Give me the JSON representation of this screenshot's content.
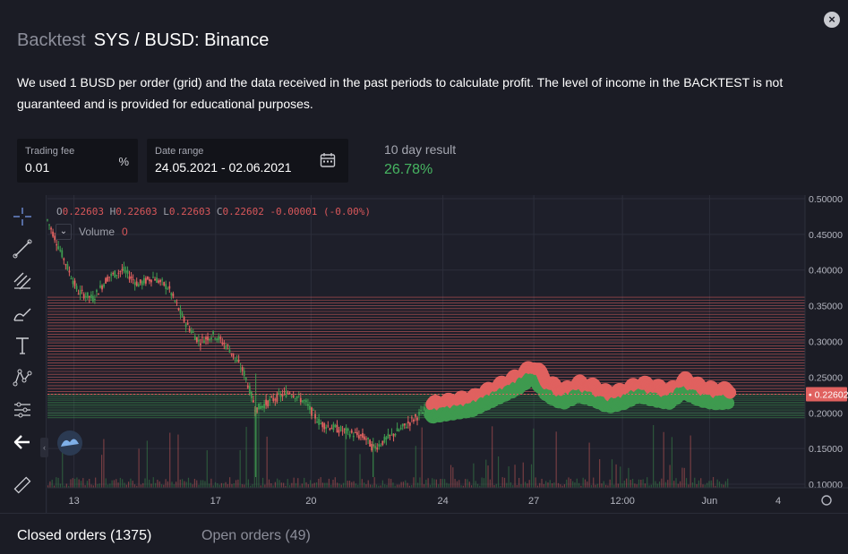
{
  "header": {
    "section": "Backtest",
    "pair_title": "SYS / BUSD: Binance",
    "close_label": "×"
  },
  "description": "We used 1 BUSD per order (grid) and the data received in the past periods to calculate profit. The level of income in the BACKTEST is not guaranteed and is provided for educational purposes.",
  "trading_fee": {
    "label": "Trading fee",
    "value": "0.01",
    "unit": "%"
  },
  "date_range": {
    "label": "Date range",
    "value": "24.05.2021 - 02.06.2021"
  },
  "result": {
    "label": "10 day result",
    "value": "26.78%"
  },
  "legend": {
    "o_key": "O",
    "o_val": "0.22603",
    "h_key": "H",
    "h_val": "0.22603",
    "l_key": "L",
    "l_val": "0.22603",
    "c_key": "C",
    "c_val": "0.22602",
    "change": "-0.00001 (-0.00%)",
    "volume_label": "Volume",
    "volume_value": "0"
  },
  "tabs": {
    "closed": "Closed orders (1375)",
    "open": "Open orders (49)"
  },
  "colors": {
    "up": "#3e9a4f",
    "down": "#e0615f",
    "accent_green": "#47b662",
    "background": "#1b1c25"
  },
  "chart_data": {
    "type": "candlestick",
    "ylim": [
      0.095,
      0.505
    ],
    "y_ticks": [
      "0.50000",
      "0.45000",
      "0.40000",
      "0.35000",
      "0.30000",
      "0.25000",
      "0.20000",
      "0.15000",
      "0.10000"
    ],
    "y_tick_values": [
      0.5,
      0.45,
      0.4,
      0.35,
      0.3,
      0.25,
      0.2,
      0.15,
      0.1
    ],
    "x_ticks": [
      "13",
      "17",
      "20",
      "24",
      "27",
      "12:00",
      "Jun",
      "4"
    ],
    "x_tick_positions": [
      0.035,
      0.222,
      0.348,
      0.522,
      0.642,
      0.759,
      0.874,
      1.0
    ],
    "last_price": "0.22602",
    "last_price_value": 0.22602,
    "grid_sell_range": [
      0.226,
      0.362
    ],
    "grid_buy_range": [
      0.193,
      0.226
    ],
    "price_path": [
      [
        0.0,
        0.47
      ],
      [
        0.02,
        0.42
      ],
      [
        0.04,
        0.37
      ],
      [
        0.06,
        0.36
      ],
      [
        0.08,
        0.39
      ],
      [
        0.1,
        0.4
      ],
      [
        0.12,
        0.38
      ],
      [
        0.14,
        0.39
      ],
      [
        0.16,
        0.375
      ],
      [
        0.18,
        0.33
      ],
      [
        0.2,
        0.3
      ],
      [
        0.22,
        0.31
      ],
      [
        0.24,
        0.29
      ],
      [
        0.26,
        0.255
      ],
      [
        0.275,
        0.205
      ],
      [
        0.3,
        0.22
      ],
      [
        0.32,
        0.23
      ],
      [
        0.34,
        0.215
      ],
      [
        0.36,
        0.185
      ],
      [
        0.39,
        0.175
      ],
      [
        0.42,
        0.165
      ],
      [
        0.43,
        0.15
      ],
      [
        0.45,
        0.165
      ],
      [
        0.47,
        0.18
      ],
      [
        0.5,
        0.205
      ],
      [
        0.53,
        0.21
      ],
      [
        0.56,
        0.215
      ],
      [
        0.58,
        0.225
      ],
      [
        0.6,
        0.235
      ],
      [
        0.62,
        0.245
      ],
      [
        0.64,
        0.26
      ],
      [
        0.66,
        0.235
      ],
      [
        0.68,
        0.225
      ],
      [
        0.7,
        0.235
      ],
      [
        0.72,
        0.23
      ],
      [
        0.74,
        0.22
      ],
      [
        0.76,
        0.225
      ],
      [
        0.78,
        0.235
      ],
      [
        0.8,
        0.23
      ],
      [
        0.82,
        0.225
      ],
      [
        0.84,
        0.24
      ],
      [
        0.86,
        0.23
      ],
      [
        0.88,
        0.225
      ],
      [
        0.9,
        0.226
      ]
    ]
  },
  "toolbar": [
    "crosshair",
    "trend-line",
    "fib",
    "brush",
    "text",
    "pattern",
    "measure",
    "back",
    "ruler"
  ]
}
